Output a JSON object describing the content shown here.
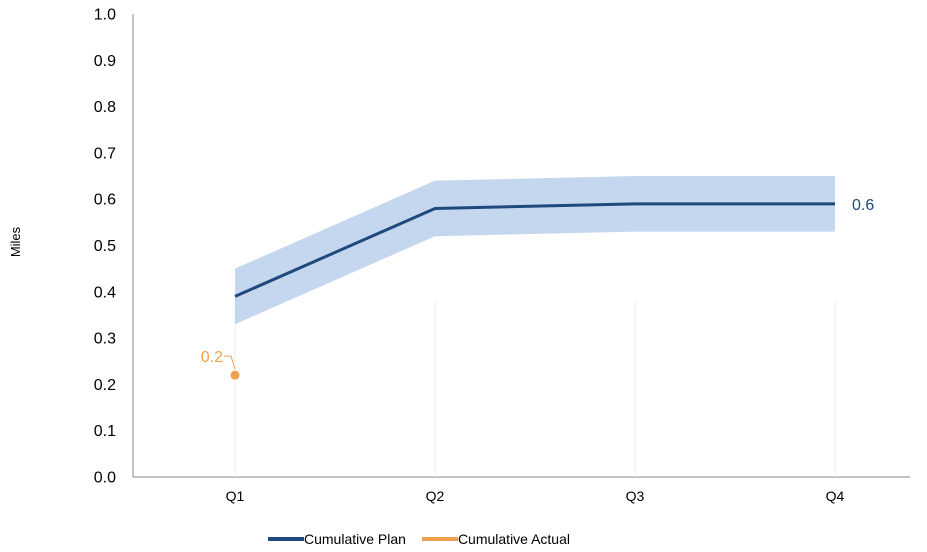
{
  "chart_data": {
    "type": "line",
    "categories": [
      "Q1",
      "Q2",
      "Q3",
      "Q4"
    ],
    "ylabel": "Miles",
    "xlabel": "",
    "ylim": [
      0,
      1.0
    ],
    "yticks": [
      "0.0",
      "0.1",
      "0.2",
      "0.3",
      "0.4",
      "0.5",
      "0.6",
      "0.7",
      "0.8",
      "0.9",
      "1.0"
    ],
    "grid": false,
    "legend_position": "bottom",
    "series": [
      {
        "name": "Cumulative Plan",
        "color": "#1f497d",
        "values": [
          0.39,
          0.58,
          0.59,
          0.59
        ],
        "band_upper": [
          0.45,
          0.64,
          0.65,
          0.65
        ],
        "band_lower": [
          0.33,
          0.52,
          0.53,
          0.53
        ],
        "band_color": "#c5d7ef",
        "end_label": "0.6"
      },
      {
        "name": "Cumulative Actual",
        "color": "#f0a050",
        "values": [
          0.22,
          null,
          null,
          null
        ],
        "point_label": "0.2"
      }
    ]
  }
}
